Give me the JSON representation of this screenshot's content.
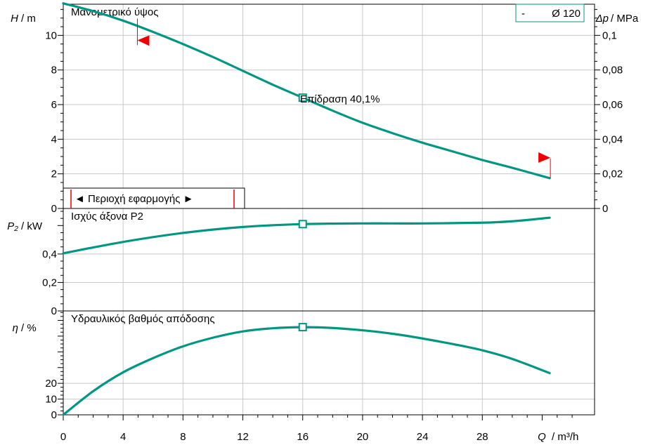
{
  "colors": {
    "curve": "#009682",
    "marker": "#ee0000",
    "axis": "#000000",
    "grid": "#c8c8c8",
    "background": "#ffffff"
  },
  "x_axis": {
    "symbol": "Q",
    "unit": "/ m³/h",
    "tick_labels": [
      {
        "v": 0,
        "t": "0"
      },
      {
        "v": 4,
        "t": "4"
      },
      {
        "v": 8,
        "t": "8"
      },
      {
        "v": 12,
        "t": "12"
      },
      {
        "v": 16,
        "t": "16"
      },
      {
        "v": 20,
        "t": "20"
      },
      {
        "v": 24,
        "t": "24"
      },
      {
        "v": 28,
        "t": "28"
      }
    ]
  },
  "chart_data": [
    {
      "type": "line",
      "title": "Μανομετρικό ύψος",
      "ylabel_symbol": "H",
      "ylabel_unit": "/ m",
      "right_axis": {
        "symbol": "Δp",
        "unit": "/ MPa",
        "tick_labels": [
          {
            "v": 0,
            "t": "0"
          },
          {
            "v": 2,
            "t": "0,02"
          },
          {
            "v": 4,
            "t": "0,04"
          },
          {
            "v": 6,
            "t": "0,06"
          },
          {
            "v": 8,
            "t": "0,08"
          },
          {
            "v": 10,
            "t": "0,1"
          }
        ]
      },
      "xlim": [
        0,
        35.5
      ],
      "ylim": [
        0,
        11.8
      ],
      "y_tick_labels": [
        {
          "v": 0,
          "t": "0"
        },
        {
          "v": 2,
          "t": "2"
        },
        {
          "v": 4,
          "t": "4"
        },
        {
          "v": 6,
          "t": "6"
        },
        {
          "v": 8,
          "t": "8"
        },
        {
          "v": 10,
          "t": "10"
        }
      ],
      "series": [
        {
          "name": "Ø 120",
          "x": [
            0,
            2,
            4,
            6,
            8,
            10,
            12,
            14,
            16,
            18,
            20,
            22,
            24,
            26,
            28,
            30,
            32.5
          ],
          "y": [
            11.85,
            11.4,
            10.85,
            10.2,
            9.5,
            8.75,
            7.95,
            7.15,
            6.4,
            5.65,
            4.95,
            4.35,
            3.8,
            3.3,
            2.8,
            2.35,
            1.75
          ]
        }
      ],
      "legend_prefix": "-",
      "legend_text": "Ø 120",
      "operating_point": {
        "x": 16,
        "y": 6.4
      },
      "annotation": "Επίδραση  40,1%",
      "range_label": "◄ Περιοχή εφαρμογής ►",
      "range_limits": {
        "min": 5,
        "max": 32.5
      }
    },
    {
      "type": "line",
      "title": "Ισχύς άξονα  P2",
      "ylabel_symbol": "P₂",
      "ylabel_unit": "/ kW",
      "xlim": [
        0,
        35.5
      ],
      "ylim": [
        0,
        0.72
      ],
      "y_tick_labels": [
        {
          "v": 0,
          "t": "0"
        },
        {
          "v": 0.2,
          "t": "0,2"
        },
        {
          "v": 0.4,
          "t": "0,4"
        }
      ],
      "series": [
        {
          "x": [
            0,
            4,
            8,
            12,
            16,
            20,
            24,
            28,
            30,
            32.5
          ],
          "y": [
            0.405,
            0.485,
            0.548,
            0.59,
            0.61,
            0.615,
            0.615,
            0.62,
            0.63,
            0.655
          ]
        }
      ],
      "operating_point": {
        "x": 16,
        "y": 0.61
      }
    },
    {
      "type": "line",
      "title": "Υδραυλικός βαθμός απόδοσης",
      "ylabel_symbol": "η",
      "ylabel_unit": "/ %",
      "xlim": [
        0,
        35.5
      ],
      "ylim": [
        0,
        66
      ],
      "y_tick_labels": [
        {
          "v": 0,
          "t": "0"
        },
        {
          "v": 10,
          "t": "10"
        },
        {
          "v": 20,
          "t": "20"
        }
      ],
      "series": [
        {
          "x": [
            0,
            2,
            4,
            6,
            8,
            10,
            12,
            14,
            16,
            18,
            20,
            22,
            24,
            26,
            28,
            30,
            32.5
          ],
          "y": [
            0,
            15,
            27,
            36,
            43.5,
            49,
            53,
            55,
            55.7,
            55.2,
            53.7,
            51.5,
            48.5,
            45,
            41,
            35.5,
            26.5
          ]
        }
      ],
      "operating_point": {
        "x": 16,
        "y": 55.7
      }
    }
  ]
}
